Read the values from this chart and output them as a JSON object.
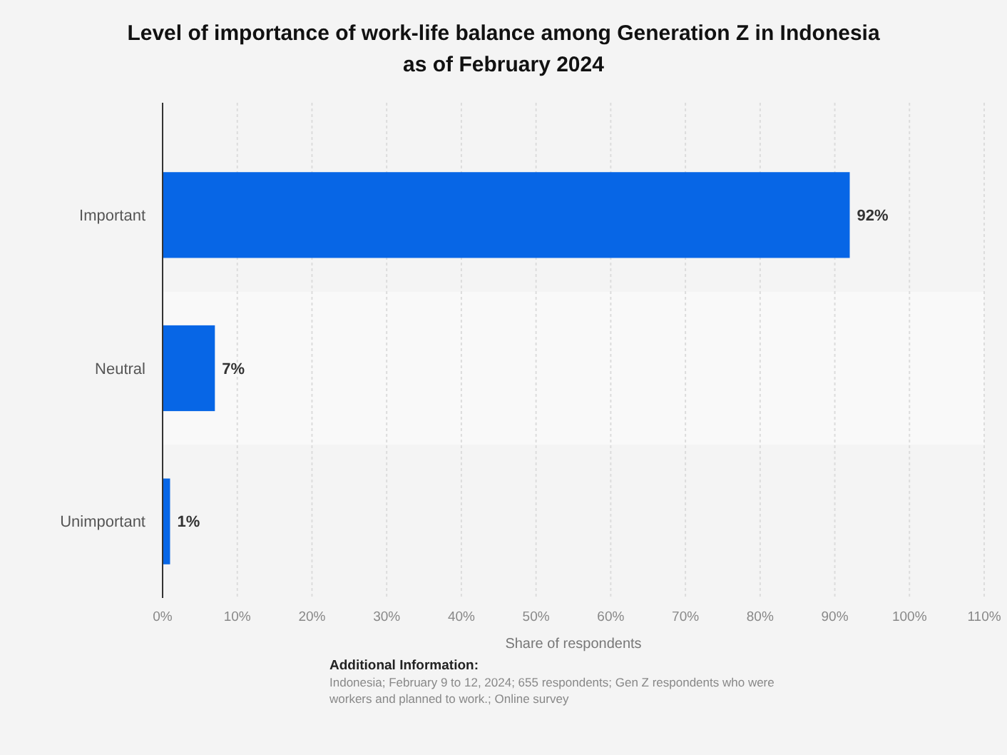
{
  "chart_data": {
    "type": "bar",
    "orientation": "horizontal",
    "title": "Level of importance of work-life balance among Generation Z in Indonesia as of February 2024",
    "categories": [
      "Important",
      "Neutral",
      "Unimportant"
    ],
    "values": [
      92,
      7,
      1
    ],
    "color": "#0766e6",
    "value_labels": [
      "92%",
      "7%",
      "1%"
    ],
    "xlabel": "Share of respondents",
    "xlim": [
      0,
      110
    ],
    "xticks": [
      {
        "value": 0,
        "label": "0%"
      },
      {
        "value": 10,
        "label": "10%"
      },
      {
        "value": 20,
        "label": "20%"
      },
      {
        "value": 30,
        "label": "30%"
      },
      {
        "value": 40,
        "label": "40%"
      },
      {
        "value": 50,
        "label": "50%"
      },
      {
        "value": 60,
        "label": "60%"
      },
      {
        "value": 70,
        "label": "70%"
      },
      {
        "value": 80,
        "label": "80%"
      },
      {
        "value": 90,
        "label": "90%"
      },
      {
        "value": 100,
        "label": "100%"
      },
      {
        "value": 110,
        "label": "110%"
      }
    ],
    "grid": "x",
    "annotations": [
      "Additional Information:",
      "Indonesia; February 9 to 12, 2024; 655 respondents; Gen Z respondents who were workers and planned to work.; Online survey"
    ]
  }
}
